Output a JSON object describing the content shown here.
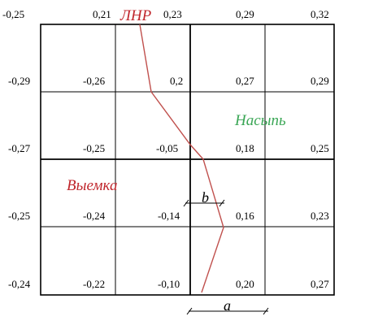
{
  "grid_values": [
    [
      "-0,25",
      "0,21",
      "0,23",
      "0,29",
      "0,32"
    ],
    [
      "-0,29",
      "-0,26",
      "0,2",
      "0,27",
      "0,29"
    ],
    [
      "-0,27",
      "-0,25",
      "-0,05",
      "0,18",
      "0,25"
    ],
    [
      "-0,25",
      "-0,24",
      "-0,14",
      "0,16",
      "0,23"
    ],
    [
      "-0,24",
      "-0,22",
      "-0,10",
      "0,20",
      "0,27"
    ]
  ],
  "labels": {
    "lnr": "ЛНР",
    "fill_zone": "Насыпь",
    "cut_zone": "Выемка",
    "b": "b",
    "a": "a"
  },
  "colors": {
    "lnr": "#c0272d",
    "fill_zone": "#3aa655",
    "cut_zone": "#c0272d",
    "zero_line": "#c0504d",
    "grid": "#000000"
  }
}
